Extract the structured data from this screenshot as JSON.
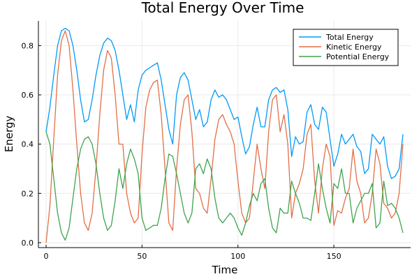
{
  "chart_data": {
    "type": "line",
    "title": "Total Energy Over Time",
    "xlabel": "Time",
    "ylabel": "Energy",
    "xlim": [
      -4,
      190
    ],
    "ylim": [
      -0.02,
      0.9
    ],
    "xticks": [
      0,
      50,
      100,
      150
    ],
    "xtick_labels": [
      "0",
      "50",
      "100",
      "150"
    ],
    "yticks": [
      0.0,
      0.2,
      0.4,
      0.6,
      0.8
    ],
    "ytick_labels": [
      "0.0",
      "0.2",
      "0.4",
      "0.6",
      "0.8"
    ],
    "grid": true,
    "legend_position": "top-right",
    "series": [
      {
        "name": "Total Energy",
        "color": "#009AFA",
        "x": [
          0,
          2,
          4,
          6,
          8,
          10,
          12,
          14,
          16,
          18,
          20,
          22,
          24,
          26,
          28,
          30,
          32,
          34,
          36,
          38,
          40,
          42,
          44,
          46,
          48,
          50,
          52,
          54,
          56,
          58,
          60,
          62,
          64,
          66,
          68,
          70,
          72,
          74,
          76,
          78,
          80,
          82,
          84,
          86,
          88,
          90,
          92,
          94,
          96,
          98,
          100,
          102,
          104,
          106,
          108,
          110,
          112,
          114,
          116,
          118,
          120,
          122,
          124,
          126,
          128,
          130,
          132,
          134,
          136,
          138,
          140,
          142,
          144,
          146,
          148,
          150,
          152,
          154,
          156,
          158,
          160,
          162,
          164,
          166,
          168,
          170,
          172,
          174,
          176,
          178,
          180,
          182,
          184,
          186
        ],
        "y": [
          0.45,
          0.55,
          0.68,
          0.8,
          0.86,
          0.87,
          0.86,
          0.8,
          0.7,
          0.58,
          0.49,
          0.5,
          0.58,
          0.68,
          0.76,
          0.81,
          0.83,
          0.82,
          0.78,
          0.7,
          0.6,
          0.5,
          0.56,
          0.49,
          0.62,
          0.68,
          0.7,
          0.71,
          0.72,
          0.73,
          0.66,
          0.56,
          0.46,
          0.4,
          0.6,
          0.67,
          0.69,
          0.66,
          0.58,
          0.5,
          0.54,
          0.47,
          0.49,
          0.58,
          0.62,
          0.59,
          0.6,
          0.58,
          0.54,
          0.5,
          0.51,
          0.43,
          0.36,
          0.39,
          0.48,
          0.55,
          0.47,
          0.47,
          0.58,
          0.62,
          0.63,
          0.61,
          0.62,
          0.54,
          0.35,
          0.43,
          0.4,
          0.41,
          0.53,
          0.56,
          0.48,
          0.46,
          0.55,
          0.53,
          0.42,
          0.31,
          0.36,
          0.44,
          0.4,
          0.42,
          0.44,
          0.39,
          0.37,
          0.28,
          0.3,
          0.44,
          0.42,
          0.4,
          0.43,
          0.31,
          0.26,
          0.27,
          0.3,
          0.44
        ]
      },
      {
        "name": "Kinetic Energy",
        "color": "#E26F46",
        "x": [
          0,
          2,
          4,
          6,
          8,
          10,
          12,
          14,
          16,
          18,
          20,
          22,
          24,
          26,
          28,
          30,
          32,
          34,
          36,
          38,
          40,
          42,
          44,
          46,
          48,
          50,
          52,
          54,
          56,
          58,
          60,
          62,
          64,
          66,
          68,
          70,
          72,
          74,
          76,
          78,
          80,
          82,
          84,
          86,
          88,
          90,
          92,
          94,
          96,
          98,
          100,
          102,
          104,
          106,
          108,
          110,
          112,
          114,
          116,
          118,
          120,
          122,
          124,
          126,
          128,
          130,
          132,
          134,
          136,
          138,
          140,
          142,
          144,
          146,
          148,
          150,
          152,
          154,
          156,
          158,
          160,
          162,
          164,
          166,
          168,
          170,
          172,
          174,
          176,
          178,
          180,
          182,
          184,
          186
        ],
        "y": [
          0.0,
          0.15,
          0.42,
          0.68,
          0.82,
          0.86,
          0.8,
          0.62,
          0.4,
          0.2,
          0.08,
          0.05,
          0.12,
          0.3,
          0.52,
          0.7,
          0.78,
          0.75,
          0.6,
          0.4,
          0.4,
          0.2,
          0.12,
          0.08,
          0.1,
          0.36,
          0.55,
          0.62,
          0.65,
          0.66,
          0.52,
          0.3,
          0.08,
          0.05,
          0.3,
          0.48,
          0.58,
          0.6,
          0.45,
          0.22,
          0.2,
          0.14,
          0.12,
          0.26,
          0.42,
          0.5,
          0.52,
          0.48,
          0.45,
          0.4,
          0.25,
          0.12,
          0.08,
          0.1,
          0.25,
          0.4,
          0.3,
          0.22,
          0.45,
          0.58,
          0.6,
          0.45,
          0.52,
          0.4,
          0.1,
          0.2,
          0.24,
          0.3,
          0.44,
          0.48,
          0.25,
          0.12,
          0.3,
          0.4,
          0.35,
          0.07,
          0.13,
          0.12,
          0.18,
          0.22,
          0.38,
          0.25,
          0.2,
          0.08,
          0.1,
          0.2,
          0.38,
          0.32,
          0.16,
          0.14,
          0.1,
          0.12,
          0.2,
          0.4
        ]
      },
      {
        "name": "Potential Energy",
        "color": "#3EA44E",
        "x": [
          0,
          2,
          4,
          6,
          8,
          10,
          12,
          14,
          16,
          18,
          20,
          22,
          24,
          26,
          28,
          30,
          32,
          34,
          36,
          38,
          40,
          42,
          44,
          46,
          48,
          50,
          52,
          54,
          56,
          58,
          60,
          62,
          64,
          66,
          68,
          70,
          72,
          74,
          76,
          78,
          80,
          82,
          84,
          86,
          88,
          90,
          92,
          94,
          96,
          98,
          100,
          102,
          104,
          106,
          108,
          110,
          112,
          114,
          116,
          118,
          120,
          122,
          124,
          126,
          128,
          130,
          132,
          134,
          136,
          138,
          140,
          142,
          144,
          146,
          148,
          150,
          152,
          154,
          156,
          158,
          160,
          162,
          164,
          166,
          168,
          170,
          172,
          174,
          176,
          178,
          180,
          182,
          184,
          186
        ],
        "y": [
          0.45,
          0.4,
          0.26,
          0.12,
          0.04,
          0.01,
          0.06,
          0.18,
          0.3,
          0.38,
          0.42,
          0.43,
          0.4,
          0.32,
          0.2,
          0.1,
          0.05,
          0.07,
          0.17,
          0.3,
          0.22,
          0.32,
          0.38,
          0.34,
          0.28,
          0.1,
          0.05,
          0.06,
          0.07,
          0.07,
          0.14,
          0.26,
          0.36,
          0.35,
          0.28,
          0.2,
          0.12,
          0.08,
          0.12,
          0.3,
          0.32,
          0.28,
          0.34,
          0.3,
          0.18,
          0.1,
          0.08,
          0.1,
          0.12,
          0.1,
          0.06,
          0.03,
          0.08,
          0.15,
          0.2,
          0.17,
          0.24,
          0.26,
          0.14,
          0.06,
          0.04,
          0.14,
          0.12,
          0.12,
          0.25,
          0.2,
          0.16,
          0.1,
          0.1,
          0.09,
          0.2,
          0.32,
          0.22,
          0.14,
          0.08,
          0.24,
          0.22,
          0.3,
          0.2,
          0.2,
          0.08,
          0.14,
          0.17,
          0.2,
          0.2,
          0.24,
          0.06,
          0.08,
          0.25,
          0.15,
          0.16,
          0.14,
          0.1,
          0.04
        ]
      }
    ]
  }
}
